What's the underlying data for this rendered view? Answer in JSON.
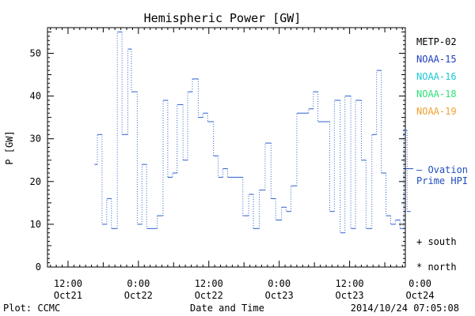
{
  "footer": {
    "plot_credit": "Plot: CCMC",
    "timestamp": "2014/10/24 07:05:08"
  },
  "legend": {
    "entries": [
      {
        "label": "METP-02",
        "color": "#000000"
      },
      {
        "label": "NOAA-15",
        "color": "#1f3fbf"
      },
      {
        "label": "NOAA-16",
        "color": "#1fc7d6"
      },
      {
        "label": "NOAA-18",
        "color": "#2ee07a"
      },
      {
        "label": "NOAA-19",
        "color": "#f0a030"
      }
    ],
    "ovation_line1": "Ovation",
    "ovation_line2": "Prime HPI",
    "ovation_value": 23,
    "ovation_color": "#1f4fbf",
    "south_label": "+ south",
    "north_label": "* north"
  },
  "chart_data": {
    "type": "line",
    "title": "Hemispheric Power [GW]",
    "xlabel": "Date and Time",
    "ylabel": "P [GW]",
    "ylim": [
      0,
      56
    ],
    "xlim": [
      -15.5,
      45.5
    ],
    "x_unit": "hours relative to 2014-10-22 00:00 UT",
    "yticks": [
      0,
      10,
      20,
      30,
      40,
      50
    ],
    "xticks": [
      {
        "x": -12,
        "time": "12:00",
        "date": "Oct21"
      },
      {
        "x": 0,
        "time": "0:00",
        "date": "Oct22"
      },
      {
        "x": 12,
        "time": "12:00",
        "date": "Oct22"
      },
      {
        "x": 24,
        "time": "0:00",
        "date": "Oct23"
      },
      {
        "x": 36,
        "time": "12:00",
        "date": "Oct23"
      },
      {
        "x": 48,
        "time": "0:00",
        "date": "Oct24"
      }
    ],
    "grid": false,
    "line_style": "step, dotted vertical transitions",
    "series": [
      {
        "name": "NOAA-15",
        "color": "#2b5fcf",
        "points": [
          [
            -7.5,
            24
          ],
          [
            -7,
            31
          ],
          [
            -6.2,
            10
          ],
          [
            -5.4,
            16
          ],
          [
            -4.6,
            9
          ],
          [
            -3.6,
            55
          ],
          [
            -2.8,
            31
          ],
          [
            -1.8,
            51
          ],
          [
            -1.2,
            41
          ],
          [
            -0.2,
            10
          ],
          [
            0.6,
            24
          ],
          [
            1.4,
            9
          ],
          [
            3.2,
            12
          ],
          [
            4.2,
            39
          ],
          [
            5.0,
            21
          ],
          [
            5.8,
            22
          ],
          [
            6.6,
            38
          ],
          [
            7.6,
            25
          ],
          [
            8.4,
            41
          ],
          [
            9.2,
            44
          ],
          [
            10.2,
            35
          ],
          [
            11.0,
            36
          ],
          [
            11.8,
            34
          ],
          [
            12.8,
            26
          ],
          [
            13.6,
            21
          ],
          [
            14.4,
            23
          ],
          [
            15.2,
            21
          ],
          [
            17.8,
            12
          ],
          [
            18.8,
            17
          ],
          [
            19.6,
            9
          ],
          [
            20.6,
            18
          ],
          [
            21.6,
            29
          ],
          [
            22.6,
            16
          ],
          [
            23.4,
            11
          ],
          [
            24.4,
            14
          ],
          [
            25.2,
            13
          ],
          [
            26.0,
            19
          ],
          [
            27.0,
            36
          ],
          [
            29.0,
            37
          ],
          [
            29.8,
            41
          ],
          [
            30.6,
            34
          ],
          [
            32.6,
            13
          ],
          [
            33.4,
            39
          ],
          [
            34.4,
            8
          ],
          [
            35.2,
            40
          ],
          [
            36.2,
            9
          ],
          [
            37.0,
            39
          ],
          [
            38.0,
            25
          ],
          [
            38.8,
            9
          ],
          [
            39.8,
            31
          ],
          [
            40.6,
            46
          ],
          [
            41.4,
            22
          ],
          [
            42.2,
            12
          ],
          [
            43.0,
            10
          ],
          [
            43.8,
            11
          ],
          [
            44.6,
            9
          ],
          [
            45.2,
            32
          ],
          [
            45.8,
            13
          ]
        ]
      }
    ]
  }
}
